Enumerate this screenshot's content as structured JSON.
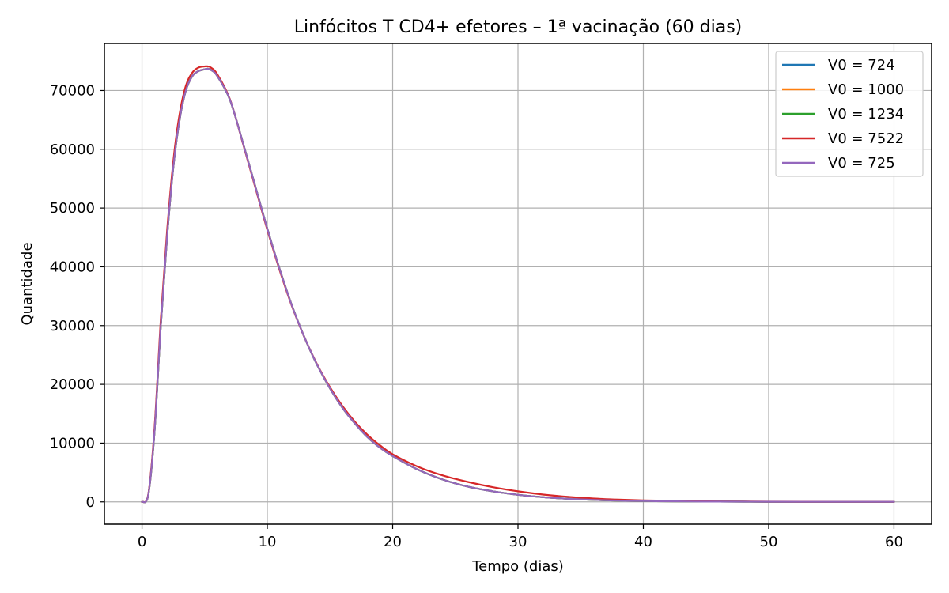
{
  "chart_data": {
    "type": "line",
    "title": "Linfócitos T CD4+ efetores – 1ª vacinação (60 dias)",
    "xlabel": "Tempo (dias)",
    "ylabel": "Quantidade",
    "xlim": [
      -3,
      63
    ],
    "ylim": [
      -3800,
      78000
    ],
    "xticks": [
      0,
      10,
      20,
      30,
      40,
      50,
      60
    ],
    "yticks": [
      0,
      10000,
      20000,
      30000,
      40000,
      50000,
      60000,
      70000
    ],
    "grid": true,
    "legend_position": "top-right",
    "x": [
      0,
      0.5,
      1,
      1.5,
      2,
      2.5,
      3,
      3.5,
      4,
      4.5,
      5,
      5.25,
      5.5,
      6,
      7,
      8,
      9,
      10,
      11,
      12,
      13,
      14,
      15,
      16,
      17,
      18,
      19,
      20,
      22,
      24,
      26,
      28,
      30,
      32,
      34,
      36,
      38,
      40,
      42,
      44,
      46,
      48,
      50,
      55,
      60
    ],
    "series": [
      {
        "name": "V0 = 724",
        "color": "#1f77b4",
        "values": [
          0,
          1200,
          12000,
          30000,
          45000,
          57000,
          65000,
          70000,
          72400,
          73300,
          73600,
          73700,
          73500,
          72500,
          68500,
          61500,
          54000,
          46500,
          39500,
          33200,
          27800,
          23200,
          19300,
          16000,
          13300,
          11000,
          9200,
          7800,
          5500,
          3800,
          2600,
          1800,
          1200,
          800,
          520,
          340,
          220,
          150,
          100,
          65,
          42,
          28,
          18,
          6,
          2
        ]
      },
      {
        "name": "V0 = 1000",
        "color": "#ff7f0e",
        "values": [
          0,
          1200,
          12000,
          30000,
          45000,
          57000,
          65000,
          70000,
          72400,
          73300,
          73600,
          73700,
          73500,
          72500,
          68500,
          61500,
          54000,
          46500,
          39500,
          33200,
          27800,
          23200,
          19300,
          16000,
          13300,
          11000,
          9200,
          7800,
          5500,
          3800,
          2600,
          1800,
          1200,
          800,
          520,
          340,
          220,
          150,
          100,
          65,
          42,
          28,
          18,
          6,
          2
        ]
      },
      {
        "name": "V0 = 1234",
        "color": "#2ca02c",
        "values": [
          0,
          1200,
          12000,
          30000,
          45000,
          57000,
          65000,
          70000,
          72400,
          73300,
          73600,
          73700,
          73500,
          72500,
          68500,
          61500,
          54000,
          46500,
          39500,
          33200,
          27800,
          23200,
          19300,
          16000,
          13300,
          11000,
          9200,
          7800,
          5500,
          3800,
          2600,
          1800,
          1200,
          800,
          520,
          340,
          220,
          150,
          100,
          65,
          42,
          28,
          18,
          6,
          2
        ]
      },
      {
        "name": "V0 = 7522",
        "color": "#d62728",
        "values": [
          0,
          1300,
          12600,
          31000,
          46000,
          58000,
          66000,
          70800,
          73000,
          73900,
          74100,
          74100,
          73900,
          72800,
          68600,
          61400,
          53800,
          46300,
          39300,
          33100,
          27800,
          23300,
          19500,
          16300,
          13600,
          11400,
          9600,
          8100,
          6000,
          4500,
          3400,
          2500,
          1800,
          1250,
          850,
          570,
          380,
          260,
          180,
          120,
          80,
          55,
          38,
          14,
          5
        ]
      },
      {
        "name": "V0 = 725",
        "color": "#9467bd",
        "values": [
          0,
          1200,
          12000,
          30000,
          45000,
          57000,
          65000,
          70000,
          72400,
          73300,
          73600,
          73700,
          73500,
          72500,
          68500,
          61500,
          54000,
          46500,
          39500,
          33200,
          27800,
          23200,
          19300,
          16000,
          13300,
          11000,
          9200,
          7800,
          5500,
          3800,
          2600,
          1800,
          1200,
          800,
          520,
          340,
          220,
          150,
          100,
          65,
          42,
          28,
          18,
          6,
          2
        ]
      }
    ]
  }
}
